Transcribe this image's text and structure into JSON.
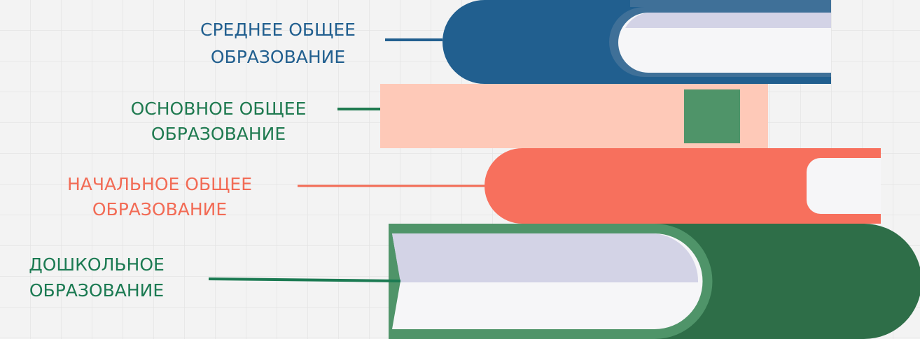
{
  "labels": [
    {
      "lines": [
        "СРЕДНЕЕ ОБЩЕЕ",
        "ОБРАЗОВАНИЕ"
      ]
    },
    {
      "lines": [
        "ОСНОВНОЕ ОБЩЕЕ",
        "ОБРАЗОВАНИЕ"
      ]
    },
    {
      "lines": [
        "НАЧАЛЬНОЕ ОБЩЕЕ",
        "ОБРАЗОВАНИЕ"
      ]
    },
    {
      "lines": [
        "ДОШКОЛЬНОЕ",
        "ОБРАЗОВАНИЕ"
      ]
    }
  ]
}
